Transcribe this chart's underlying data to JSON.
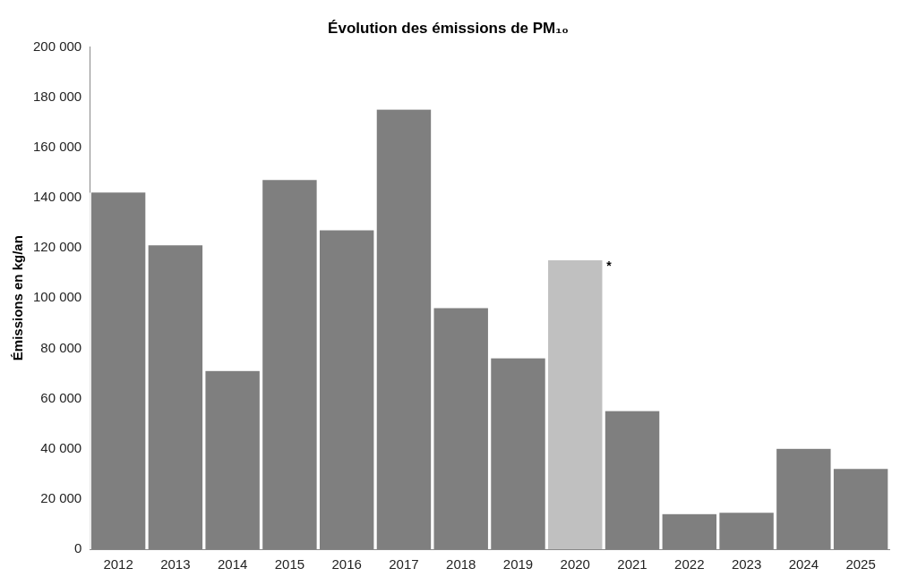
{
  "chart_data": {
    "type": "bar",
    "title": "Évolution des émissions de PM₁₀",
    "ylabel": "Émissions en kg/an",
    "categories": [
      "2012",
      "2013",
      "2014",
      "2015",
      "2016",
      "2017",
      "2018",
      "2019",
      "2020",
      "2021",
      "2022",
      "2023",
      "2024",
      "2025"
    ],
    "values": [
      142000,
      121000,
      71000,
      147000,
      127000,
      175000,
      96000,
      76000,
      115000,
      55000,
      14000,
      14500,
      40000,
      32000
    ],
    "colors": [
      "#7f7f7f",
      "#7f7f7f",
      "#7f7f7f",
      "#7f7f7f",
      "#7f7f7f",
      "#7f7f7f",
      "#7f7f7f",
      "#7f7f7f",
      "#c0c0c0",
      "#7f7f7f",
      "#7f7f7f",
      "#7f7f7f",
      "#7f7f7f",
      "#7f7f7f"
    ],
    "ylim": [
      0,
      200000
    ],
    "yticks": [
      {
        "value": 0,
        "label": "0"
      },
      {
        "value": 20000,
        "label": "20 000"
      },
      {
        "value": 40000,
        "label": "40 000"
      },
      {
        "value": 60000,
        "label": "60 000"
      },
      {
        "value": 80000,
        "label": "80 000"
      },
      {
        "value": 100000,
        "label": "100 000"
      },
      {
        "value": 120000,
        "label": "120 000"
      },
      {
        "value": 140000,
        "label": "140 000"
      },
      {
        "value": 160000,
        "label": "160 000"
      },
      {
        "value": 180000,
        "label": "180 000"
      },
      {
        "value": 200000,
        "label": "200 000"
      }
    ],
    "annotations": [
      {
        "text": "*",
        "x": "2020",
        "y": 115000
      }
    ],
    "grid": false,
    "legend": false
  }
}
